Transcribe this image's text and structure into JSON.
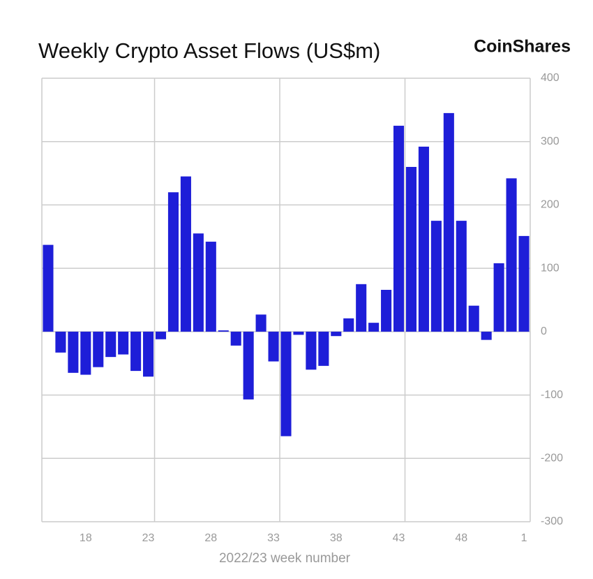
{
  "chart_data": {
    "type": "bar",
    "title": "Weekly Crypto Asset Flows (US$m)",
    "brand": "CoinShares",
    "x_label": "2022/23 week number",
    "categories": [
      null,
      null,
      null,
      "18",
      null,
      null,
      null,
      null,
      "23",
      null,
      null,
      null,
      null,
      "28",
      null,
      null,
      null,
      null,
      "33",
      null,
      null,
      null,
      null,
      "38",
      null,
      null,
      null,
      null,
      "43",
      null,
      null,
      null,
      null,
      "48",
      null,
      null,
      null,
      null,
      "1"
    ],
    "values": [
      137,
      -33,
      -65,
      -68,
      -56,
      -40,
      -36,
      -62,
      -71,
      -12,
      220,
      245,
      155,
      142,
      2,
      -22,
      -107,
      27,
      -47,
      -165,
      -5,
      -60,
      -54,
      -7,
      21,
      75,
      14,
      66,
      325,
      260,
      292,
      175,
      345,
      175,
      41,
      -13,
      108,
      242,
      151
    ],
    "color": "#1e1ed8",
    "ylim": [
      -300,
      400
    ],
    "yticks": [
      -300,
      -200,
      -100,
      0,
      100,
      200,
      300,
      400
    ],
    "grid": true
  }
}
